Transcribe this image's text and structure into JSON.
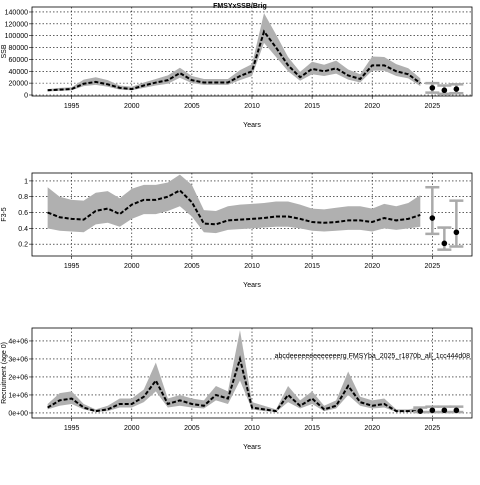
{
  "chart_data": [
    {
      "type": "line",
      "title": "FMSYxSSB/Brig",
      "ylabel": "SSB",
      "xlabel": "Years",
      "x": [
        1993,
        1994,
        1995,
        1996,
        1997,
        1998,
        1999,
        2000,
        2001,
        2002,
        2003,
        2004,
        2005,
        2006,
        2007,
        2008,
        2009,
        2010,
        2011,
        2012,
        2013,
        2014,
        2015,
        2016,
        2017,
        2018,
        2019,
        2020,
        2021,
        2022,
        2023,
        2024
      ],
      "values": [
        8000,
        9000,
        10000,
        19000,
        22000,
        18000,
        12000,
        10000,
        16000,
        21000,
        25000,
        37000,
        25000,
        21000,
        21000,
        21000,
        32000,
        40000,
        107000,
        80000,
        50000,
        30000,
        44000,
        40000,
        45000,
        33000,
        27000,
        50000,
        50000,
        40000,
        35000,
        20000
      ],
      "lower": [
        6000,
        7000,
        8000,
        15000,
        17000,
        14000,
        9000,
        8000,
        12000,
        16000,
        19000,
        29000,
        20000,
        17000,
        17000,
        17000,
        25000,
        32000,
        88000,
        64000,
        40000,
        24000,
        35000,
        32000,
        36000,
        26000,
        21000,
        41000,
        41000,
        32000,
        28000,
        15000
      ],
      "upper": [
        10000,
        12000,
        13000,
        26000,
        30000,
        25000,
        16000,
        14000,
        21000,
        27000,
        33000,
        46000,
        32000,
        27000,
        27000,
        27000,
        42000,
        52000,
        138000,
        102000,
        64000,
        39000,
        56000,
        51000,
        58000,
        43000,
        35000,
        65000,
        64000,
        52000,
        45000,
        28000
      ],
      "proj_x": [
        2025,
        2026,
        2027
      ],
      "proj_values": [
        12000,
        8000,
        10000
      ],
      "proj_lower": [
        4000,
        2000,
        3000
      ],
      "proj_upper": [
        20000,
        16000,
        18000
      ],
      "xlim": [
        1991.7,
        2028.3
      ],
      "xticks": [
        1995,
        2000,
        2005,
        2010,
        2015,
        2020,
        2025
      ],
      "ylim": [
        -1700,
        148400
      ],
      "yticks": [
        0,
        20000,
        40000,
        60000,
        80000,
        100000,
        120000,
        140000
      ],
      "band_color": "#b0b0b0",
      "line_color": "#000000",
      "grid": true
    },
    {
      "type": "line",
      "ylabel": "F3-5",
      "xlabel": "Years",
      "x": [
        1993,
        1994,
        1995,
        1996,
        1997,
        1998,
        1999,
        2000,
        2001,
        2002,
        2003,
        2004,
        2005,
        2006,
        2007,
        2008,
        2009,
        2010,
        2011,
        2012,
        2013,
        2014,
        2015,
        2016,
        2017,
        2018,
        2019,
        2020,
        2021,
        2022,
        2023,
        2024
      ],
      "values": [
        0.6,
        0.54,
        0.52,
        0.51,
        0.62,
        0.65,
        0.58,
        0.7,
        0.76,
        0.76,
        0.8,
        0.88,
        0.73,
        0.46,
        0.45,
        0.5,
        0.51,
        0.52,
        0.53,
        0.55,
        0.55,
        0.52,
        0.48,
        0.47,
        0.48,
        0.5,
        0.5,
        0.48,
        0.53,
        0.5,
        0.52,
        0.57
      ],
      "lower": [
        0.4,
        0.37,
        0.36,
        0.35,
        0.45,
        0.47,
        0.42,
        0.52,
        0.58,
        0.58,
        0.62,
        0.68,
        0.55,
        0.35,
        0.34,
        0.38,
        0.39,
        0.4,
        0.41,
        0.42,
        0.42,
        0.4,
        0.37,
        0.36,
        0.37,
        0.38,
        0.38,
        0.36,
        0.4,
        0.38,
        0.4,
        0.42
      ],
      "upper": [
        0.92,
        0.8,
        0.76,
        0.75,
        0.85,
        0.87,
        0.78,
        0.9,
        0.95,
        0.95,
        0.98,
        1.08,
        0.95,
        0.63,
        0.62,
        0.68,
        0.7,
        0.71,
        0.72,
        0.74,
        0.74,
        0.7,
        0.65,
        0.64,
        0.66,
        0.68,
        0.68,
        0.65,
        0.71,
        0.68,
        0.72,
        0.82
      ],
      "proj_x": [
        2025,
        2026,
        2027
      ],
      "proj_values": [
        0.53,
        0.21,
        0.35
      ],
      "proj_lower": [
        0.33,
        0.13,
        0.17
      ],
      "proj_upper": [
        0.92,
        0.41,
        0.75
      ],
      "xlim": [
        1991.7,
        2028.3
      ],
      "xticks": [
        1995,
        2000,
        2005,
        2010,
        2015,
        2020,
        2025
      ],
      "ylim": [
        0.05,
        1.1
      ],
      "yticks": [
        0.2,
        0.4,
        0.6,
        0.8,
        1.0
      ],
      "band_color": "#b0b0b0",
      "line_color": "#000000",
      "grid": true
    },
    {
      "type": "line",
      "ylabel": "Recruitment (age 0)",
      "xlabel": "Years",
      "annotation": "abcdeeeeeeeeeeeeerg FMSYba_2025_r1870b_all_1cc444d08",
      "x": [
        1993,
        1994,
        1995,
        1996,
        1997,
        1998,
        1999,
        2000,
        2001,
        2002,
        2003,
        2004,
        2005,
        2006,
        2007,
        2008,
        2009,
        2010,
        2011,
        2012,
        2013,
        2014,
        2015,
        2016,
        2017,
        2018,
        2019,
        2020,
        2021,
        2022,
        2023,
        2024
      ],
      "values": [
        300000,
        700000,
        800000,
        300000,
        100000,
        200000,
        500000,
        500000,
        900000,
        1800000,
        500000,
        700000,
        500000,
        400000,
        1000000,
        800000,
        3000000,
        300000,
        200000,
        100000,
        1000000,
        400000,
        800000,
        200000,
        400000,
        1500000,
        600000,
        400000,
        500000,
        100000,
        100000,
        100000
      ],
      "lower": [
        200000,
        400000,
        500000,
        200000,
        50000,
        100000,
        300000,
        300000,
        600000,
        1200000,
        300000,
        400000,
        300000,
        250000,
        700000,
        500000,
        1800000,
        200000,
        100000,
        50000,
        600000,
        250000,
        500000,
        100000,
        250000,
        1000000,
        400000,
        250000,
        300000,
        50000,
        50000,
        50000
      ],
      "upper": [
        500000,
        1100000,
        1200000,
        500000,
        200000,
        400000,
        800000,
        800000,
        1300000,
        2800000,
        800000,
        1000000,
        800000,
        700000,
        1500000,
        1200000,
        4600000,
        600000,
        400000,
        200000,
        1500000,
        700000,
        1200000,
        400000,
        700000,
        2300000,
        900000,
        700000,
        800000,
        200000,
        200000,
        300000
      ],
      "proj_x": [
        2024,
        2025,
        2026,
        2027
      ],
      "proj_values": [
        100000,
        150000,
        150000,
        150000
      ],
      "proj_lower": [
        50000,
        50000,
        50000,
        50000
      ],
      "proj_upper": [
        300000,
        350000,
        350000,
        350000
      ],
      "xlim": [
        1991.7,
        2028.3
      ],
      "xticks": [
        1995,
        2000,
        2005,
        2010,
        2015,
        2020,
        2025
      ],
      "ylim": [
        -280000,
        4720000
      ],
      "yticks": [
        {
          "value": 0,
          "label": "0e+00"
        },
        {
          "value": 1000000,
          "label": "1e+06"
        },
        {
          "value": 2000000,
          "label": "2e+06"
        },
        {
          "value": 3000000,
          "label": "3e+06"
        },
        {
          "value": 4000000,
          "label": "4e+06"
        }
      ],
      "band_color": "#b0b0b0",
      "line_color": "#000000",
      "grid": true
    }
  ]
}
